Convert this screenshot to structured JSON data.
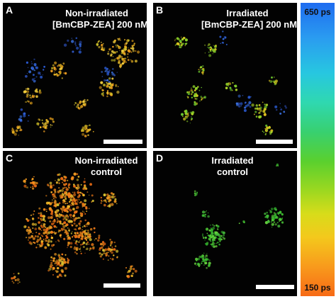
{
  "panels": {
    "a": {
      "letter": "A",
      "label_line1": "Non-irradiated",
      "label_line2": "[BmCBP-ZEA] 200 nM"
    },
    "b": {
      "letter": "B",
      "label_line1": "Irradiated",
      "label_line2": "[BmCBP-ZEA] 200 nM"
    },
    "c": {
      "letter": "C",
      "label_line1": "Non-irradiated",
      "label_line2": "control"
    },
    "d": {
      "letter": "D",
      "label_line1": "Irradiated",
      "label_line2": "control"
    }
  },
  "colorbar": {
    "top_label": "650 ps",
    "bottom_label": "150 ps",
    "top_color": "#1f6cf0",
    "bottom_color": "#f76a16"
  }
}
